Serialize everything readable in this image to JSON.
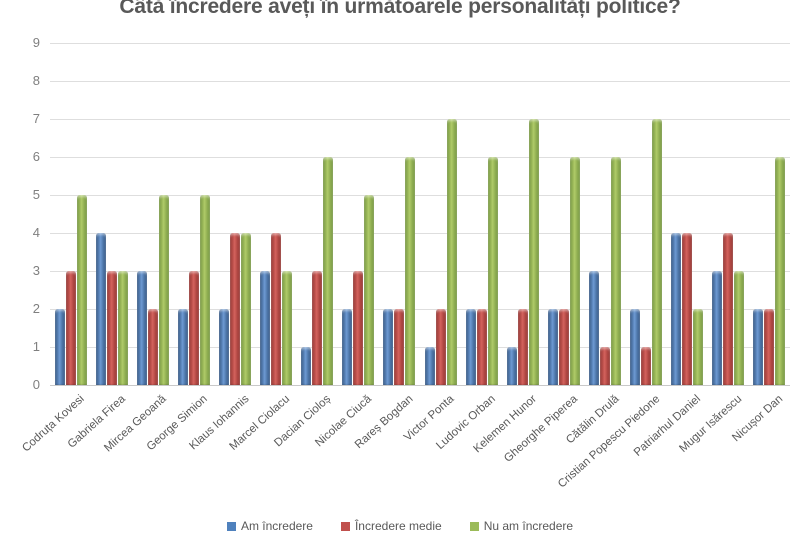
{
  "chart_data": {
    "type": "bar",
    "title": "Câtă încredere aveți în următoarele personalități politice?",
    "categories": [
      "Codruța Kovesi",
      "Gabriela Firea",
      "Mircea Geoană",
      "George Simion",
      "Klaus Iohannis",
      "Marcel Ciolacu",
      "Dacian Cioloș",
      "Nicolae Ciucă",
      "Rareș Bogdan",
      "Victor Ponta",
      "Ludovic Orban",
      "Kelemen Hunor",
      "Gheorghe Piperea",
      "Cătălin Drulă",
      "Cristian Popescu Piedone",
      "Patriarhul Daniel",
      "Mugur Isărescu",
      "Nicușor Dan"
    ],
    "series": [
      {
        "name": "Am încredere",
        "color": "#4F81BD",
        "color_light": "#6D9AD3",
        "color_dark": "#2F527F",
        "values": [
          2,
          4,
          3,
          2,
          2,
          3,
          1,
          2,
          2,
          1,
          2,
          1,
          2,
          3,
          2,
          4,
          3,
          2
        ]
      },
      {
        "name": "Încredere medie",
        "color": "#C0504D",
        "color_light": "#D4625D",
        "color_dark": "#8F2F2C",
        "values": [
          3,
          3,
          2,
          3,
          4,
          4,
          3,
          3,
          2,
          2,
          2,
          2,
          2,
          1,
          1,
          4,
          4,
          2
        ]
      },
      {
        "name": "Nu am încredere",
        "color": "#9BBB59",
        "color_light": "#AFCB68",
        "color_dark": "#71923B",
        "values": [
          5,
          3,
          5,
          5,
          4,
          3,
          6,
          5,
          6,
          7,
          6,
          7,
          6,
          6,
          7,
          2,
          3,
          6
        ]
      }
    ],
    "ylim": [
      0,
      9
    ],
    "yticks": [
      9,
      8,
      7,
      6,
      5,
      4,
      3,
      2,
      1,
      0
    ],
    "grid": true,
    "legend_position": "bottom",
    "title_color": "#595959",
    "axis_label_color": "#595959",
    "ytick_color": "#7F7F7F",
    "gridline_color": "#DEDEDE"
  }
}
